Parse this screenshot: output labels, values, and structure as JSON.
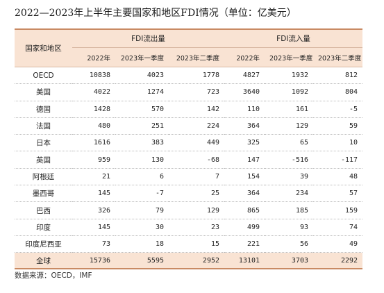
{
  "title": "2022—2023年上半年主要国家和地区FDI情况（单位：亿美元）",
  "table": {
    "corner_header": "国家和地区",
    "group_headers": [
      "FDI流出量",
      "FDI流入量"
    ],
    "sub_headers": [
      "2022年",
      "2023年一季度",
      "2023年二季度",
      "2022年",
      "2023年一季度",
      "2023年二季度"
    ],
    "rows": [
      {
        "name": "OECD",
        "values": [
          "10838",
          "4023",
          "1778",
          "4827",
          "1932",
          "812"
        ]
      },
      {
        "name": "美国",
        "values": [
          "4022",
          "1274",
          "723",
          "3640",
          "1092",
          "804"
        ]
      },
      {
        "name": "德国",
        "values": [
          "1428",
          "570",
          "142",
          "110",
          "161",
          "-5"
        ]
      },
      {
        "name": "法国",
        "values": [
          "480",
          "251",
          "224",
          "364",
          "129",
          "59"
        ]
      },
      {
        "name": "日本",
        "values": [
          "1616",
          "383",
          "449",
          "325",
          "65",
          "10"
        ]
      },
      {
        "name": "英国",
        "values": [
          "959",
          "130",
          "-68",
          "147",
          "-516",
          "-117"
        ]
      },
      {
        "name": "阿根廷",
        "values": [
          "21",
          "6",
          "7",
          "154",
          "39",
          "48"
        ]
      },
      {
        "name": "墨西哥",
        "values": [
          "145",
          "-7",
          "25",
          "364",
          "234",
          "57"
        ]
      },
      {
        "name": "巴西",
        "values": [
          "326",
          "79",
          "129",
          "865",
          "185",
          "159"
        ]
      },
      {
        "name": "印度",
        "values": [
          "145",
          "30",
          "23",
          "499",
          "93",
          "74"
        ]
      },
      {
        "name": "印度尼西亚",
        "values": [
          "73",
          "18",
          "15",
          "221",
          "56",
          "49"
        ]
      }
    ],
    "total": {
      "name": "全球",
      "values": [
        "15736",
        "5595",
        "2952",
        "13101",
        "3703",
        "2292"
      ]
    }
  },
  "source": "数据来源：OECD，IMF"
}
